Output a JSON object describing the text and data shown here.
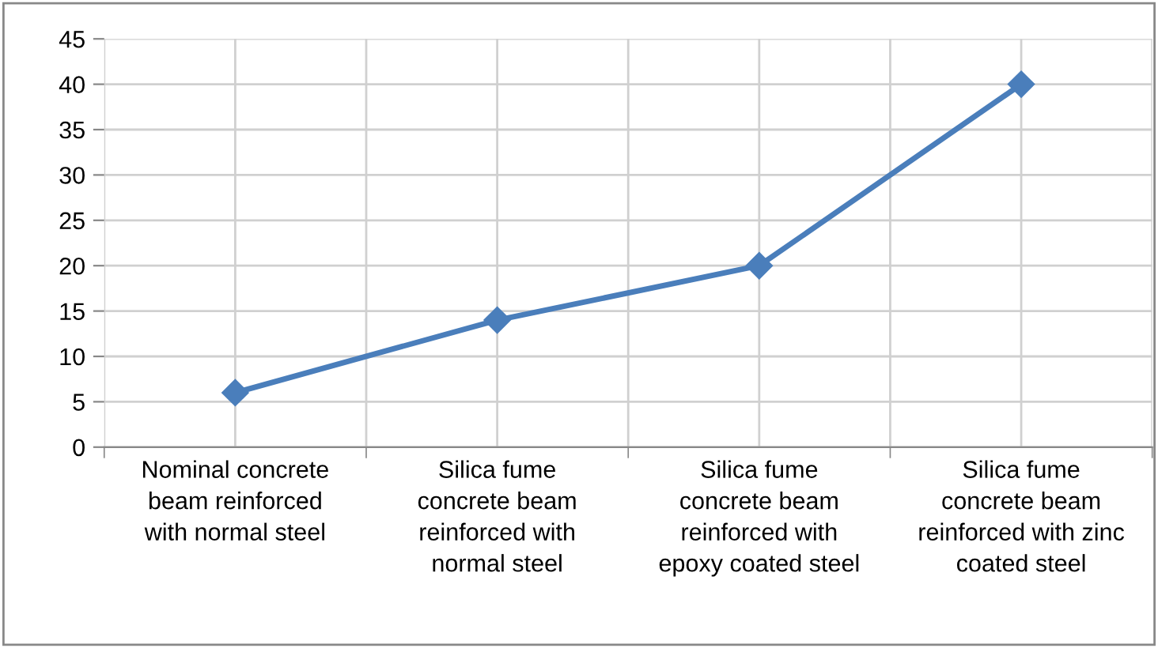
{
  "chart_data": {
    "type": "line",
    "categories": [
      "Nominal concrete\nbeam reinforced\nwith normal steel",
      "Silica fume\nconcrete beam\nreinforced with\nnormal steel",
      "Silica fume\nconcrete beam\nreinforced with\nepoxy coated steel",
      "Silica fume\nconcrete beam\nreinforced with zinc\ncoated steel"
    ],
    "series": [
      {
        "color": "#4a7ebb",
        "values": [
          6,
          14,
          20,
          40
        ]
      }
    ],
    "ylim": [
      0,
      45
    ],
    "yticks": [
      0,
      5,
      10,
      15,
      20,
      25,
      30,
      35,
      40,
      45
    ],
    "grid": true,
    "marker": "diamond",
    "line_style": "solid"
  }
}
